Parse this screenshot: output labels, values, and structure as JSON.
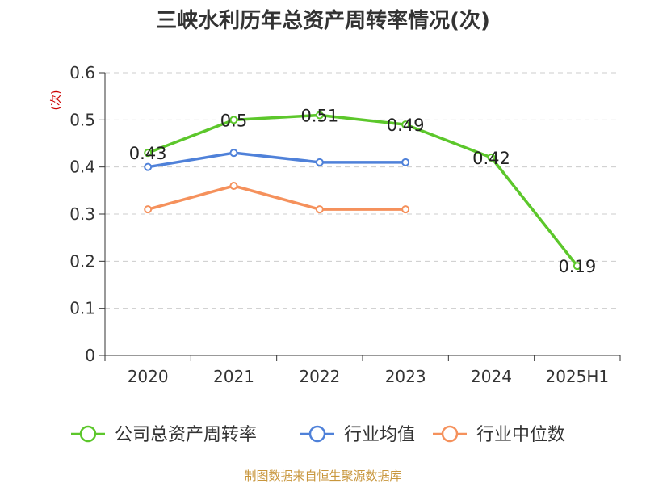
{
  "chart_data": {
    "type": "line",
    "title": "三峡水利历年总资产周转率情况(次)",
    "ylabel": "(次)",
    "xlabel": "",
    "categories": [
      "2020",
      "2021",
      "2022",
      "2023",
      "2024",
      "2025H1"
    ],
    "ylim": [
      0,
      0.6
    ],
    "yticks": [
      "0",
      "0.1",
      "0.2",
      "0.3",
      "0.4",
      "0.5",
      "0.6"
    ],
    "grid": true,
    "legend_position": "bottom",
    "series": [
      {
        "name": "公司总资产周转率",
        "color": "#5cc72b",
        "values": [
          0.43,
          0.5,
          0.51,
          0.49,
          0.42,
          0.19
        ],
        "labels": [
          "0.43",
          "0.5",
          "0.51",
          "0.49",
          "0.42",
          "0.19"
        ]
      },
      {
        "name": "行业均值",
        "color": "#4f81d9",
        "values": [
          0.4,
          0.43,
          0.41,
          0.41,
          null,
          null
        ]
      },
      {
        "name": "行业中位数",
        "color": "#f5915c",
        "values": [
          0.31,
          0.36,
          0.31,
          0.31,
          null,
          null
        ]
      }
    ],
    "source": "制图数据来自恒生聚源数据库"
  },
  "colors": {
    "title": "#333333",
    "axis": "#333333",
    "grid": "#cccccc",
    "ylabel": "#cc0000",
    "source": "#c8963c"
  }
}
